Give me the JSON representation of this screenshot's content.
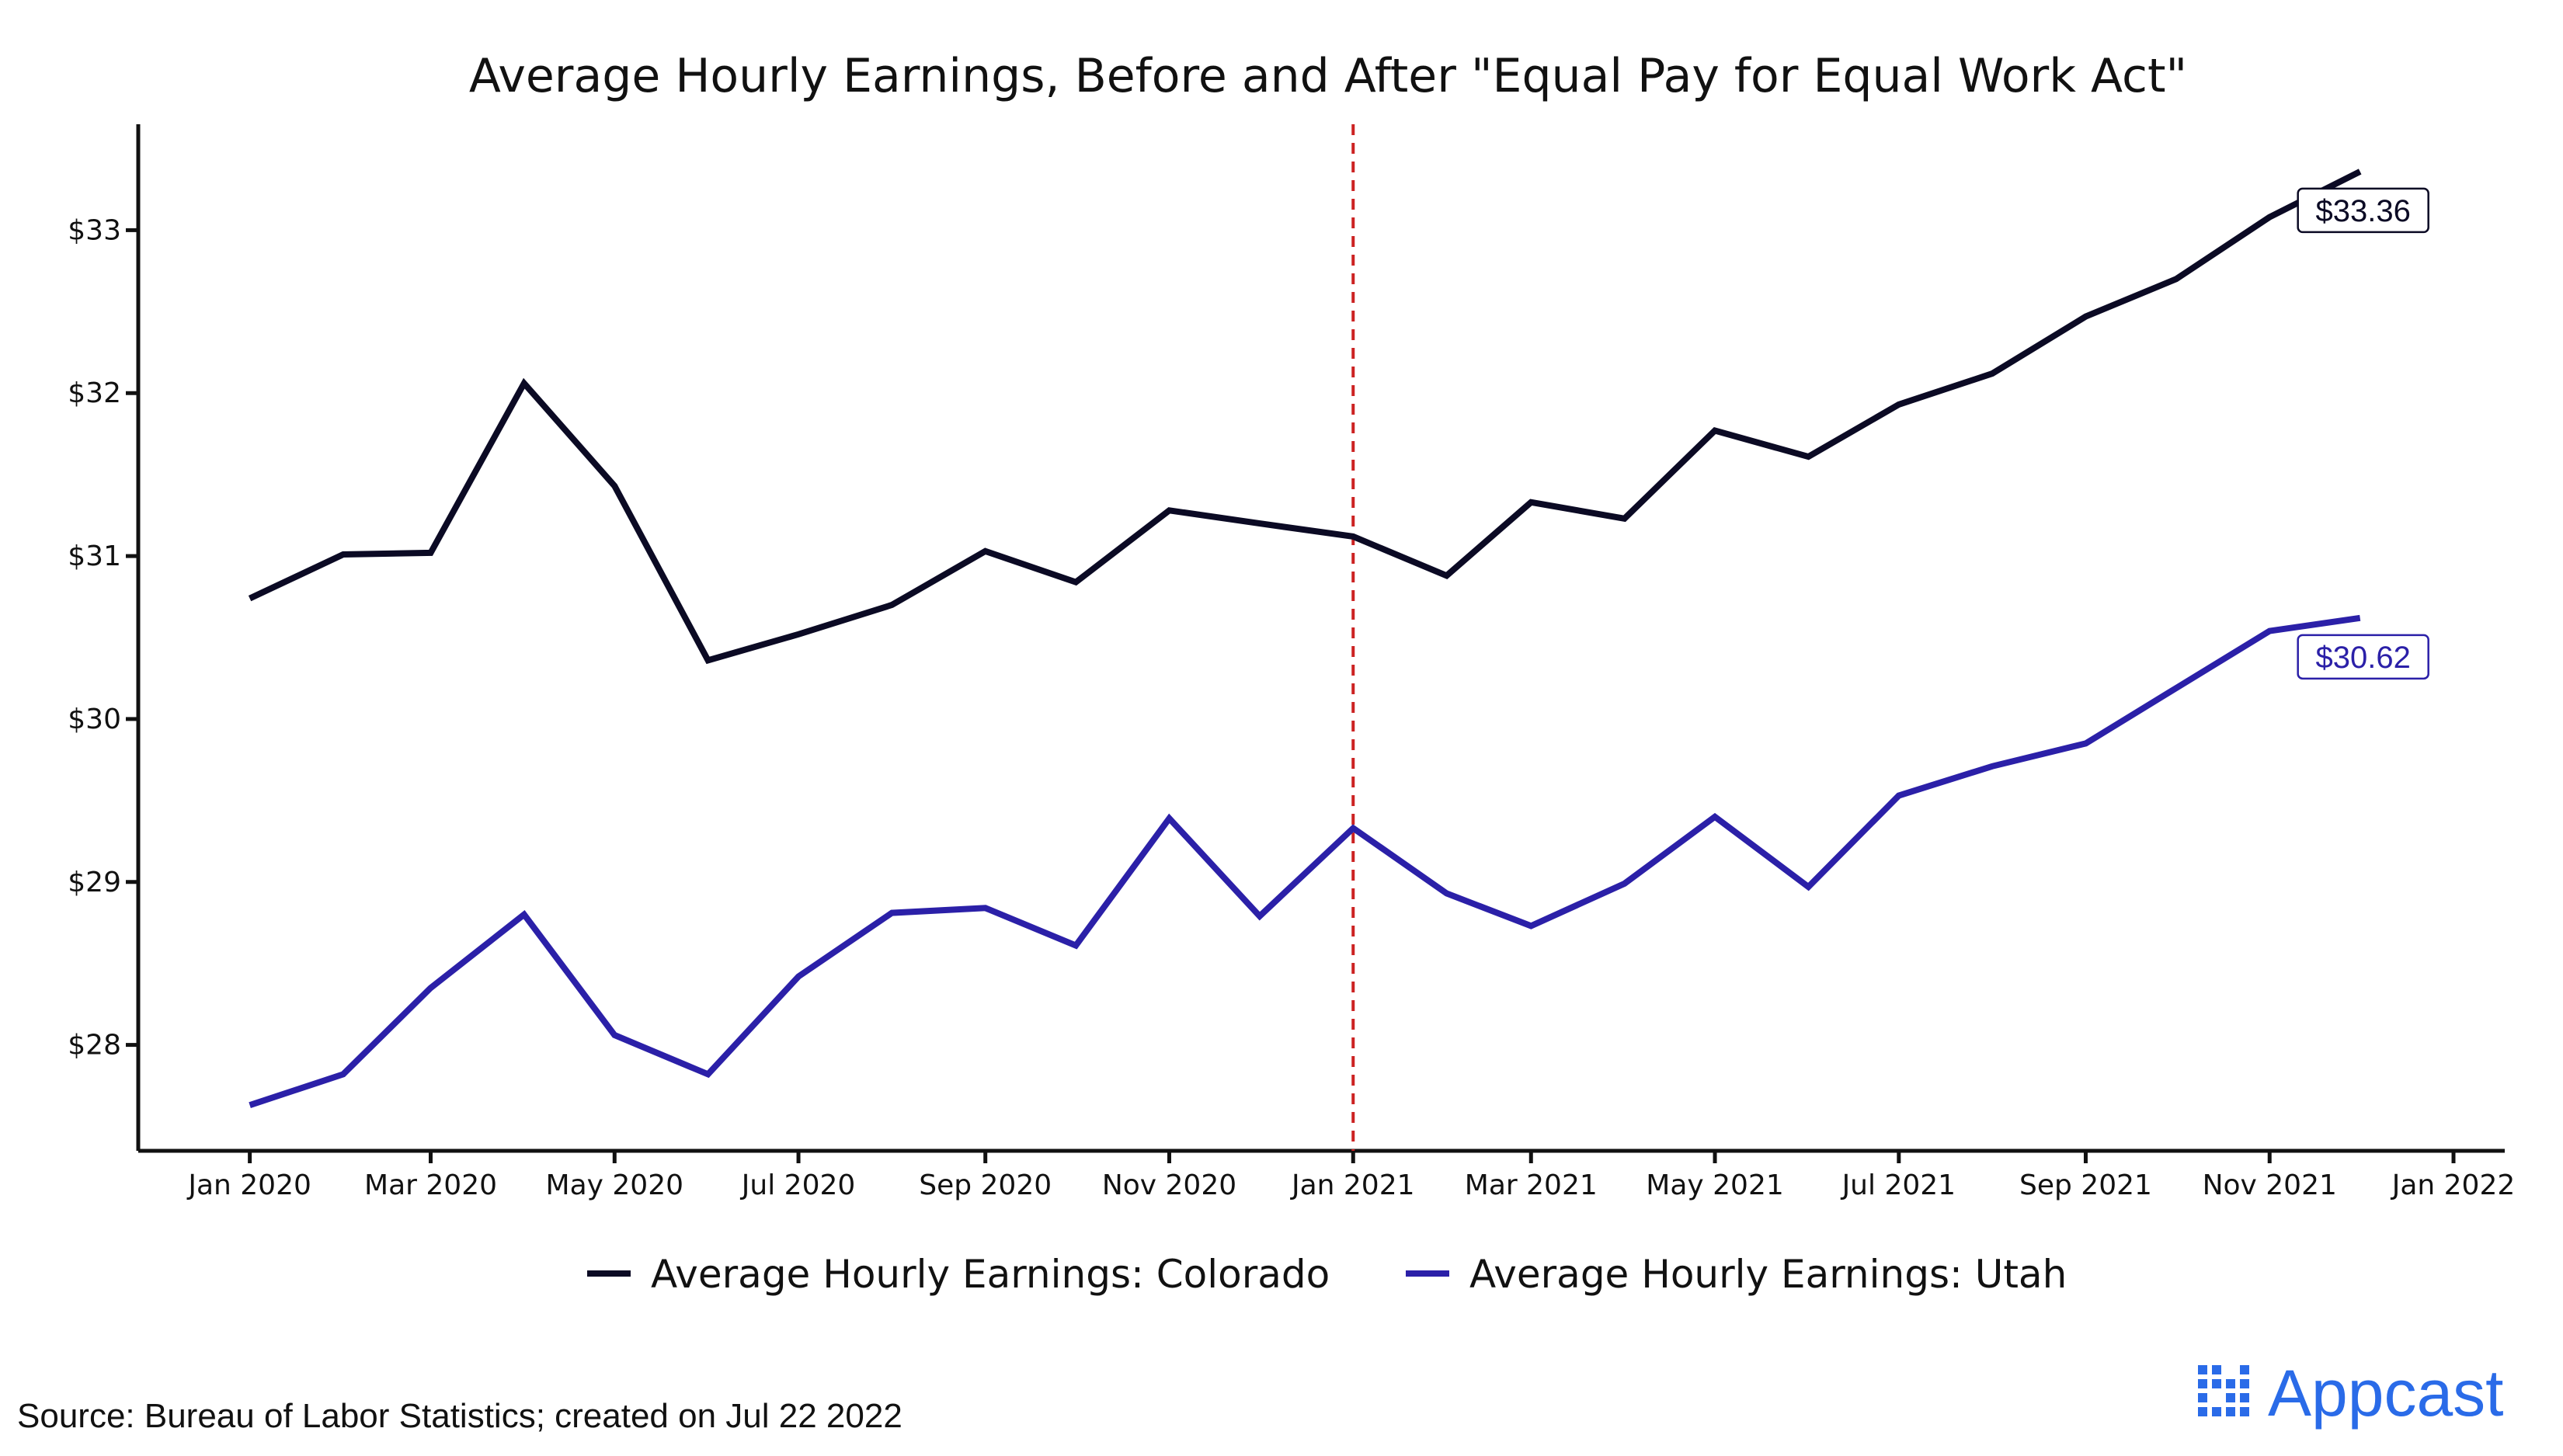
{
  "chart_data": {
    "type": "line",
    "title": "Average Hourly Earnings, Before and After \"Equal Pay for Equal Work Act\"",
    "xlabel": "",
    "ylabel": "",
    "x": [
      "2020-01",
      "2020-02",
      "2020-03",
      "2020-04",
      "2020-05",
      "2020-06",
      "2020-07",
      "2020-08",
      "2020-09",
      "2020-10",
      "2020-11",
      "2020-12",
      "2021-01",
      "2021-02",
      "2021-03",
      "2021-04",
      "2021-05",
      "2021-06",
      "2021-07",
      "2021-08",
      "2021-09",
      "2021-10",
      "2021-11",
      "2021-12"
    ],
    "x_ticks": [
      {
        "value": "2020-01",
        "label": "Jan 2020"
      },
      {
        "value": "2020-03",
        "label": "Mar 2020"
      },
      {
        "value": "2020-05",
        "label": "May 2020"
      },
      {
        "value": "2020-07",
        "label": "Jul 2020"
      },
      {
        "value": "2020-09",
        "label": "Sep 2020"
      },
      {
        "value": "2020-11",
        "label": "Nov 2020"
      },
      {
        "value": "2021-01",
        "label": "Jan 2021"
      },
      {
        "value": "2021-03",
        "label": "Mar 2021"
      },
      {
        "value": "2021-05",
        "label": "May 2021"
      },
      {
        "value": "2021-07",
        "label": "Jul 2021"
      },
      {
        "value": "2021-09",
        "label": "Sep 2021"
      },
      {
        "value": "2021-11",
        "label": "Nov 2021"
      },
      {
        "value": "2022-01",
        "label": "Jan 2022"
      }
    ],
    "xlim": [
      "2019-11-25",
      "2022-01-18"
    ],
    "y_ticks": [
      {
        "value": 28,
        "label": "$28"
      },
      {
        "value": 29,
        "label": "$29"
      },
      {
        "value": 30,
        "label": "$30"
      },
      {
        "value": 31,
        "label": "$31"
      },
      {
        "value": 32,
        "label": "$32"
      },
      {
        "value": 33,
        "label": "$33"
      }
    ],
    "ylim": [
      27.35,
      33.65
    ],
    "series": [
      {
        "name": "Average Hourly Earnings: Colorado",
        "color": "#0b0a24",
        "values": [
          30.74,
          31.01,
          31.02,
          32.06,
          31.43,
          30.36,
          30.52,
          30.7,
          31.03,
          30.84,
          31.28,
          31.2,
          31.12,
          30.88,
          31.33,
          31.23,
          31.77,
          31.61,
          31.93,
          32.12,
          32.47,
          32.7,
          33.08,
          33.36
        ],
        "end_label": "$33.36"
      },
      {
        "name": "Average Hourly Earnings: Utah",
        "color": "#2b20a8",
        "values": [
          27.63,
          27.82,
          28.35,
          28.8,
          28.06,
          27.82,
          28.42,
          28.81,
          28.84,
          28.61,
          29.39,
          28.79,
          29.33,
          28.93,
          28.73,
          28.99,
          29.4,
          28.97,
          29.53,
          29.71,
          29.85,
          30.19,
          30.54,
          30.62
        ],
        "end_label": "$30.62"
      }
    ],
    "annotations": [
      {
        "type": "vertical-line",
        "x": "2021-01",
        "style": "dashed",
        "color": "#cc2222"
      }
    ],
    "grid": false,
    "legend": "bottom"
  },
  "footer": {
    "source": "Source: Bureau of Labor Statistics; created on Jul 22 2022",
    "brand": "Appcast",
    "brand_color": "#2a6be8"
  }
}
